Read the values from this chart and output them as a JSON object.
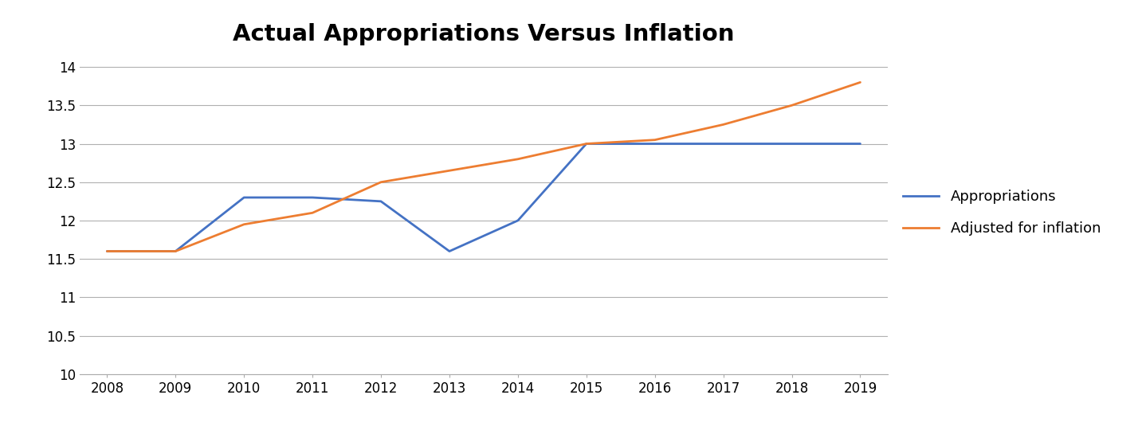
{
  "title": "Actual Appropriations Versus Inflation",
  "title_fontsize": 21,
  "title_fontweight": "bold",
  "years": [
    2008,
    2009,
    2010,
    2011,
    2012,
    2013,
    2014,
    2015,
    2016,
    2017,
    2018,
    2019
  ],
  "appropriations": [
    11.6,
    11.6,
    12.3,
    12.3,
    12.25,
    11.6,
    12.0,
    13.0,
    13.0,
    13.0,
    13.0,
    13.0
  ],
  "adjusted_for_inflation": [
    11.6,
    11.6,
    11.95,
    12.1,
    12.5,
    12.65,
    12.8,
    13.0,
    13.05,
    13.25,
    13.5,
    13.8
  ],
  "appropriations_color": "#4472C4",
  "inflation_color": "#ED7D31",
  "line_width": 2.0,
  "ylim": [
    10,
    14.2
  ],
  "yticks": [
    10,
    10.5,
    11,
    11.5,
    12,
    12.5,
    13,
    13.5,
    14
  ],
  "legend_labels": [
    "Appropriations",
    "Adjusted for inflation"
  ],
  "background_color": "#ffffff",
  "grid_color": "#b0b0b0",
  "legend_fontsize": 13,
  "axis_tick_fontsize": 12
}
